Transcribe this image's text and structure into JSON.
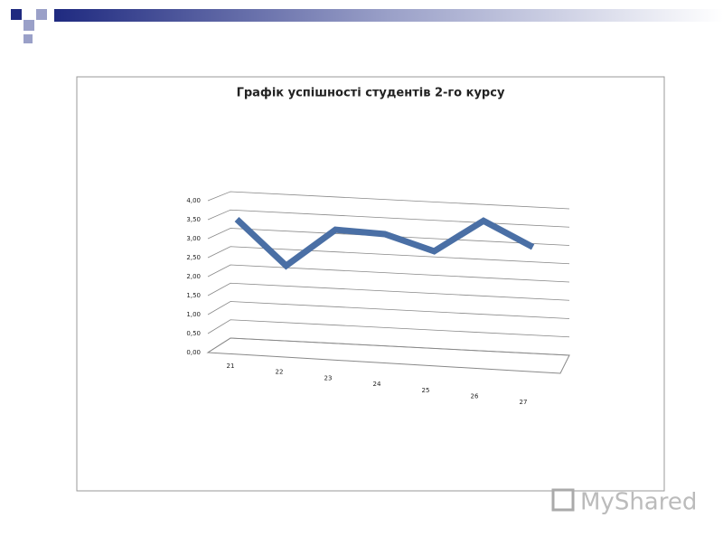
{
  "chart_data": {
    "type": "line3d",
    "title": "Графік успішності студентів 2-го курсу",
    "categories": [
      "21",
      "22",
      "23",
      "24",
      "25",
      "26",
      "27"
    ],
    "series": [
      {
        "color": "#4a6fa5",
        "values": [
          3.6,
          2.4,
          3.45,
          3.4,
          3.0,
          3.9,
          3.25
        ]
      }
    ],
    "ylim": [
      0,
      4
    ],
    "yticks": [
      {
        "value": 0,
        "label": "0,00"
      },
      {
        "value": 0.5,
        "label": "0,50"
      },
      {
        "value": 1,
        "label": "1,00"
      },
      {
        "value": 1.5,
        "label": "1,50"
      },
      {
        "value": 2,
        "label": "2,00"
      },
      {
        "value": 2.5,
        "label": "2,50"
      },
      {
        "value": 3,
        "label": "3,00"
      },
      {
        "value": 3.5,
        "label": "3,50"
      },
      {
        "value": 4,
        "label": "4,00"
      }
    ],
    "grid": true
  },
  "logo": "MyShared"
}
